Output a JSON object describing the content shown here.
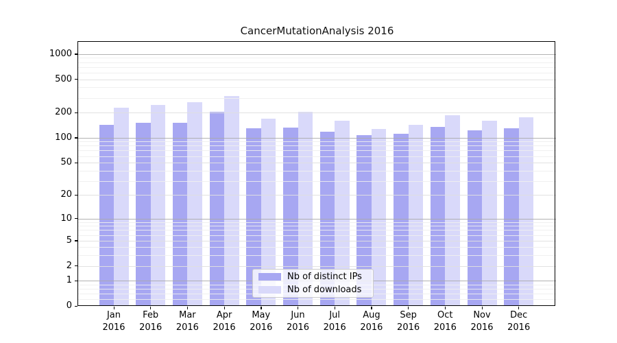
{
  "chart_data": {
    "type": "bar",
    "title": "CancerMutationAnalysis 2016",
    "categories": [
      "Jan",
      "Feb",
      "Mar",
      "Apr",
      "May",
      "Jun",
      "Jul",
      "Aug",
      "Sep",
      "Oct",
      "Nov",
      "Dec"
    ],
    "x_sublabel": "2016",
    "series": [
      {
        "name": "Nb of distinct IPs",
        "color": "#a7a7f2",
        "values": [
          142,
          152,
          152,
          206,
          130,
          133,
          117,
          107,
          111,
          136,
          123,
          131
        ]
      },
      {
        "name": "Nb of downloads",
        "color": "#d9d9fa",
        "values": [
          228,
          248,
          268,
          315,
          170,
          205,
          160,
          127,
          143,
          185,
          160,
          176
        ]
      }
    ],
    "xlabel": "",
    "ylabel": "",
    "yscale": "log1p",
    "yticks": [
      0,
      1,
      2,
      5,
      10,
      20,
      50,
      100,
      200,
      500,
      1000
    ],
    "ylim": [
      0,
      1400
    ],
    "grid": true,
    "grid_above_bars": true,
    "legend_position": "bottom-center",
    "colors": {
      "grid_major": "#aaaaaa",
      "grid_minor": "#eeeeee",
      "axis_frame": "#000000",
      "background": "#ffffff"
    }
  }
}
